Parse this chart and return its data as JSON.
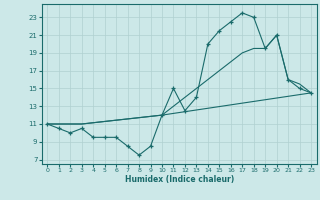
{
  "xlabel": "Humidex (Indice chaleur)",
  "xlim": [
    -0.5,
    23.5
  ],
  "ylim": [
    6.5,
    24.5
  ],
  "xticks": [
    0,
    1,
    2,
    3,
    4,
    5,
    6,
    7,
    8,
    9,
    10,
    11,
    12,
    13,
    14,
    15,
    16,
    17,
    18,
    19,
    20,
    21,
    22,
    23
  ],
  "yticks": [
    7,
    9,
    11,
    13,
    15,
    17,
    19,
    21,
    23
  ],
  "bg_color": "#cce8e8",
  "line_color": "#1a6b6b",
  "grid_color": "#b0d0d0",
  "line1_x": [
    0,
    1,
    2,
    3,
    4,
    5,
    6,
    7,
    8,
    9,
    10,
    11,
    12,
    13,
    14,
    15,
    16,
    17,
    18,
    19,
    20,
    21,
    22,
    23
  ],
  "line1_y": [
    11,
    10.5,
    10,
    10.5,
    9.5,
    9.5,
    9.5,
    8.5,
    7.5,
    8.5,
    12,
    15,
    12.5,
    14,
    20,
    21.5,
    22.5,
    23.5,
    23,
    19.5,
    21,
    16,
    15,
    14.5
  ],
  "line2_x": [
    0,
    3,
    10,
    17,
    18,
    19,
    20,
    21,
    22,
    23
  ],
  "line2_y": [
    11,
    11,
    12,
    19,
    19.5,
    19.5,
    21,
    16,
    15.5,
    14.5
  ],
  "line3_x": [
    0,
    3,
    10,
    23
  ],
  "line3_y": [
    11,
    11,
    12,
    14.5
  ]
}
